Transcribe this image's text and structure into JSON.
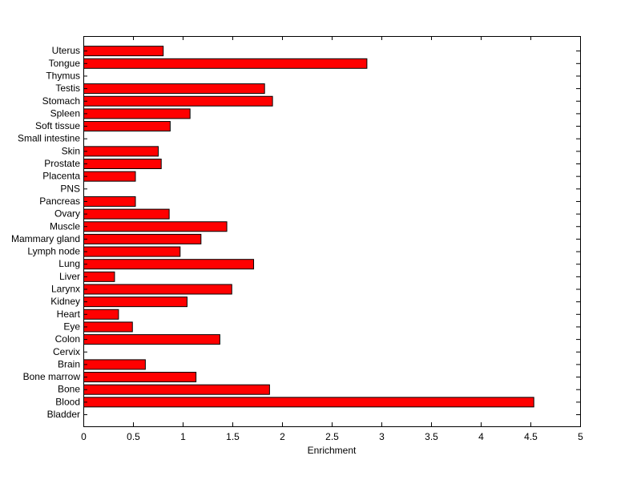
{
  "chart_data": {
    "type": "bar",
    "orientation": "horizontal",
    "categories": [
      "Bladder",
      "Blood",
      "Bone",
      "Bone marrow",
      "Brain",
      "Cervix",
      "Colon",
      "Eye",
      "Heart",
      "Kidney",
      "Larynx",
      "Liver",
      "Lung",
      "Lymph node",
      "Mammary gland",
      "Muscle",
      "Ovary",
      "Pancreas",
      "PNS",
      "Placenta",
      "Prostate",
      "Skin",
      "Small intestine",
      "Soft tissue",
      "Spleen",
      "Stomach",
      "Testis",
      "Thymus",
      "Tongue",
      "Uterus"
    ],
    "values": [
      0,
      4.53,
      1.87,
      1.13,
      0.62,
      0,
      1.37,
      0.49,
      0.35,
      1.04,
      1.49,
      0.31,
      1.71,
      0.97,
      1.18,
      1.44,
      0.86,
      0.52,
      0,
      0.52,
      0.78,
      0.75,
      0,
      0.87,
      1.07,
      1.9,
      1.82,
      0,
      2.85,
      0.8
    ],
    "xlabel": "Enrichment",
    "ylabel": "",
    "xlim": [
      0,
      5
    ],
    "xticks": [
      0,
      0.5,
      1,
      1.5,
      2,
      2.5,
      3,
      3.5,
      4,
      4.5,
      5
    ],
    "xtick_labels": [
      "0",
      "0.5",
      "1",
      "1.5",
      "2",
      "2.5",
      "3",
      "3.5",
      "4",
      "4.5",
      "5"
    ],
    "grid": false,
    "bar_color": "#ff0000",
    "edge_color": "#000000"
  }
}
